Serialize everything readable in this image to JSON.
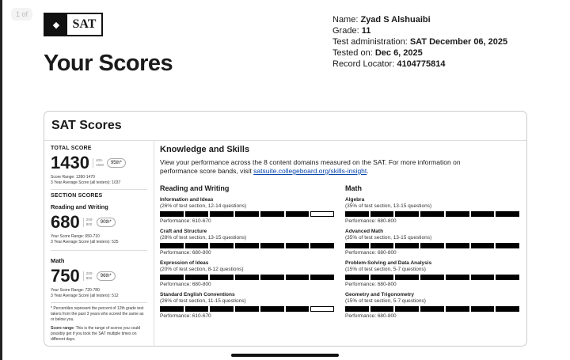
{
  "page_indicator": "1 of",
  "logo": {
    "text": "SAT"
  },
  "title": "Your Scores",
  "student": {
    "name_label": "Name: ",
    "name": "Zyad S Alshuaibi",
    "grade_label": "Grade: ",
    "grade": "11",
    "admin_label": "Test administration: ",
    "admin": "SAT December 06, 2025",
    "tested_label": "Tested on: ",
    "tested": "Dec 6, 2025",
    "locator_label": "Record Locator: ",
    "locator": "4104775814"
  },
  "card_title": "SAT Scores",
  "total": {
    "label": "TOTAL SCORE",
    "score": "1430",
    "range_min": "400-",
    "range_max": "1600",
    "percentile": "95th*",
    "score_range": "Score Range: 1390-1470",
    "average": "3 Year Average Score (all testers): 1037"
  },
  "section_label": "SECTION SCORES",
  "sections": [
    {
      "name": "Reading and Writing",
      "score": "680",
      "range_min": "200-",
      "range_max": "800",
      "percentile": "90th*",
      "score_range": "Your Score Range: 650-710",
      "average": "3 Year Average Score (all testers): 525"
    },
    {
      "name": "Math",
      "score": "750",
      "range_min": "200-",
      "range_max": "800",
      "percentile": "96th*",
      "score_range": "Your Score Range: 720-780",
      "average": "3 Year Average Score (all testers): 512"
    }
  ],
  "notes": {
    "percentile": "* Percentiles represent the percent of 12th grade test takers from the past 3 years who scored the same as or below you.",
    "range_bold": "Score range",
    "range": ": This is the range of scores you could possibly get if you took the SAT multiple times on different days."
  },
  "skills": {
    "title": "Knowledge and Skills",
    "desc": "View your performance across the 8 content domains measured on the SAT. For more information on performance score bands, visit ",
    "link": "satsuite.collegeboard.org/skills-insight",
    "desc_end": "."
  },
  "columns": [
    {
      "title": "Reading and Writing",
      "domains": [
        {
          "name": "Information and Ideas",
          "detail": "(26% of test section, 12-14 questions)",
          "filled": 6,
          "total": 7,
          "performance": "Performance: 610-670"
        },
        {
          "name": "Craft and Structure",
          "detail": "(28% of test section, 13-15 questions)",
          "filled": 7,
          "total": 7,
          "performance": "Performance: 680-800"
        },
        {
          "name": "Expression of Ideas",
          "detail": "(20% of test section, 8-12 questions)",
          "filled": 7,
          "total": 7,
          "performance": "Performance: 680-800"
        },
        {
          "name": "Standard English Conventions",
          "detail": "(26% of test section, 11-15 questions)",
          "filled": 6,
          "total": 7,
          "performance": "Performance: 610-670"
        }
      ]
    },
    {
      "title": "Math",
      "domains": [
        {
          "name": "Algebra",
          "detail": "(35% of test section, 13-15 questions)",
          "filled": 7,
          "total": 7,
          "performance": "Performance: 680-800"
        },
        {
          "name": "Advanced Math",
          "detail": "(35% of test section, 13-15 questions)",
          "filled": 7,
          "total": 7,
          "performance": "Performance: 680-800"
        },
        {
          "name": "Problem-Solving and Data Analysis",
          "detail": "(15% of test section, 5-7 questions)",
          "filled": 7,
          "total": 7,
          "performance": "Performance: 680-800"
        },
        {
          "name": "Geometry and Trigonometry",
          "detail": "(15% of test section, 5-7 questions)",
          "filled": 7,
          "total": 7,
          "performance": "Performance: 680-800"
        }
      ]
    }
  ]
}
